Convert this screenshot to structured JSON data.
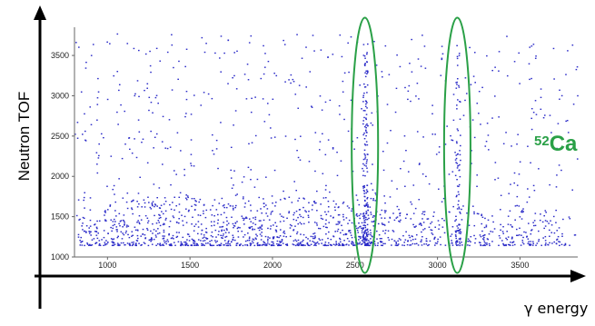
{
  "chart_data": {
    "type": "heatmap",
    "title": "",
    "xlabel": "γ energy",
    "ylabel": "Neutron TOF",
    "xlim": [
      800,
      3850
    ],
    "ylim": [
      1000,
      3850
    ],
    "x_ticks": [
      1000,
      1500,
      2000,
      2500,
      3000,
      3500
    ],
    "y_ticks": [
      1000,
      1500,
      2000,
      2500,
      3000,
      3500
    ],
    "grid": false,
    "point_color": "#2b2bc8",
    "highlight_color": "#2aa047",
    "highlights": [
      {
        "x_center": 2560,
        "x_halfwidth": 80,
        "y_range": [
          1050,
          3900
        ]
      },
      {
        "x_center": 3120,
        "x_halfwidth": 80,
        "y_range": [
          1050,
          3900
        ]
      }
    ],
    "annotation": {
      "mass_number": "52",
      "element": "Ca"
    }
  }
}
